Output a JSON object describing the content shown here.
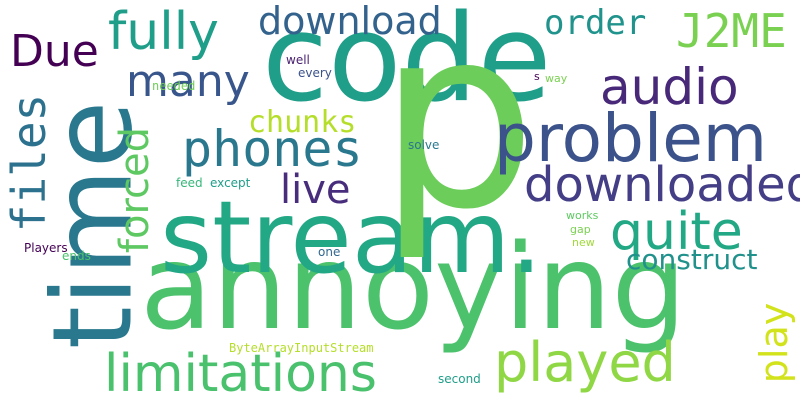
{
  "words": [
    {
      "text": "annoying",
      "color": "#4cc26c"
    },
    {
      "text": "stream.",
      "color": "#23a885"
    },
    {
      "text": "code",
      "color": "#1f9e89"
    },
    {
      "text": "p",
      "color": "#6ccd5a"
    },
    {
      "text": "time",
      "color": "#2a788e"
    },
    {
      "text": "problem",
      "color": "#3b528b"
    },
    {
      "text": "downloaded",
      "color": "#433e85"
    },
    {
      "text": "limitations",
      "color": "#4ac16d"
    },
    {
      "text": "played",
      "color": "#8fd744"
    },
    {
      "text": "audio",
      "color": "#482878"
    },
    {
      "text": "quite",
      "color": "#22a884"
    },
    {
      "text": "phones",
      "color": "#2a788e"
    },
    {
      "text": "files",
      "color": "#2c718e"
    },
    {
      "text": "fully",
      "color": "#1f9e89"
    },
    {
      "text": "Due",
      "color": "#440154"
    },
    {
      "text": "many",
      "color": "#39568c"
    },
    {
      "text": "forced",
      "color": "#5ec962"
    },
    {
      "text": "download",
      "color": "#33638d"
    },
    {
      "text": "J2ME",
      "color": "#7ad151"
    },
    {
      "text": "order",
      "color": "#20938c"
    },
    {
      "text": "live",
      "color": "#472d7b"
    },
    {
      "text": "play",
      "color": "#d2e21b"
    },
    {
      "text": "construct",
      "color": "#21918c"
    },
    {
      "text": "chunks",
      "color": "#b5de2b"
    },
    {
      "text": "ByteArrayInputStream",
      "color": "#b5de2b"
    },
    {
      "text": "needed",
      "color": "#6ece58"
    },
    {
      "text": "well",
      "color": "#481f70"
    },
    {
      "text": "every",
      "color": "#3b528b"
    },
    {
      "text": "solve",
      "color": "#2a788e"
    },
    {
      "text": "feed",
      "color": "#35b779"
    },
    {
      "text": "except",
      "color": "#1f9e89"
    },
    {
      "text": "Players",
      "color": "#440154"
    },
    {
      "text": "ends",
      "color": "#4ac16d"
    },
    {
      "text": "one",
      "color": "#31688e"
    },
    {
      "text": "works",
      "color": "#5ec962"
    },
    {
      "text": "gap",
      "color": "#7ad151"
    },
    {
      "text": "new",
      "color": "#a0da39"
    },
    {
      "text": "second",
      "color": "#1f9e89"
    },
    {
      "text": "s",
      "color": "#440154"
    },
    {
      "text": "way",
      "color": "#7ad151"
    }
  ]
}
